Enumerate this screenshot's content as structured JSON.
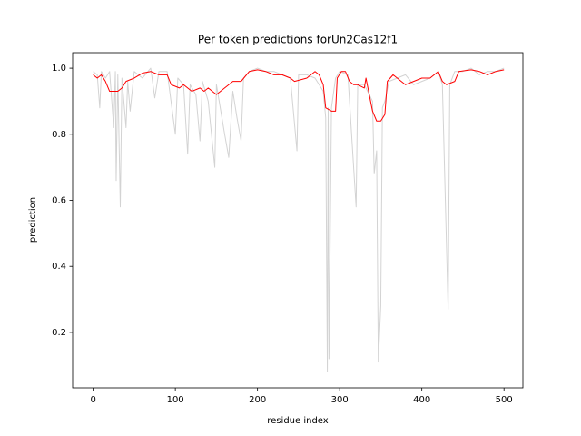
{
  "chart_data": {
    "type": "line",
    "title": "Per token predictions forUn2Cas12f1",
    "x_label": "residue index",
    "y_label": "prediction",
    "xlim": [
      -25,
      523
    ],
    "ylim": [
      0.032,
      1.047
    ],
    "xticks": [
      0,
      100,
      200,
      300,
      400,
      500
    ],
    "yticks": [
      0.2,
      0.4,
      0.6,
      0.8,
      {
        "value": 1,
        "label": "1.0"
      }
    ],
    "grid": false,
    "series": [
      {
        "color": "#d3d3d3",
        "x": [
          0,
          5,
          8,
          10,
          15,
          20,
          25,
          27,
          28,
          30,
          33,
          35,
          40,
          42,
          45,
          50,
          60,
          70,
          75,
          80,
          90,
          100,
          103,
          110,
          115,
          118,
          125,
          130,
          133,
          140,
          148,
          150,
          160,
          165,
          170,
          175,
          180,
          183,
          190,
          200,
          210,
          220,
          230,
          240,
          248,
          250,
          260,
          270,
          280,
          283,
          285,
          286,
          287,
          290,
          295,
          300,
          310,
          320,
          322,
          330,
          340,
          342,
          345,
          347,
          350,
          352,
          355,
          360,
          370,
          380,
          390,
          400,
          410,
          420,
          425,
          432,
          434,
          440,
          450,
          460,
          470,
          480,
          490,
          500
        ],
        "values": [
          0.99,
          0.98,
          0.88,
          0.99,
          0.97,
          0.99,
          0.82,
          0.99,
          0.66,
          0.98,
          0.58,
          0.97,
          0.82,
          0.96,
          0.87,
          0.99,
          0.97,
          1.0,
          0.91,
          0.99,
          0.99,
          0.8,
          0.97,
          0.95,
          0.74,
          0.95,
          0.92,
          0.78,
          0.96,
          0.9,
          0.7,
          0.95,
          0.8,
          0.73,
          0.93,
          0.85,
          0.78,
          0.97,
          0.99,
          1.0,
          0.99,
          0.99,
          0.98,
          0.97,
          0.75,
          0.98,
          0.98,
          0.97,
          0.93,
          0.85,
          0.08,
          0.88,
          0.12,
          0.88,
          0.97,
          0.99,
          0.98,
          0.58,
          0.95,
          0.95,
          0.9,
          0.68,
          0.75,
          0.11,
          0.28,
          0.88,
          0.9,
          0.96,
          0.97,
          0.98,
          0.95,
          0.96,
          0.97,
          0.99,
          0.95,
          0.27,
          0.95,
          0.99,
          0.99,
          1.0,
          0.98,
          0.99,
          0.99,
          1.0
        ]
      },
      {
        "color": "#ff0000",
        "x": [
          0,
          5,
          10,
          15,
          20,
          30,
          35,
          40,
          50,
          60,
          70,
          80,
          90,
          95,
          105,
          110,
          120,
          130,
          135,
          140,
          150,
          160,
          170,
          180,
          190,
          200,
          210,
          220,
          230,
          240,
          245,
          260,
          270,
          275,
          280,
          283,
          290,
          295,
          297,
          302,
          307,
          312,
          317,
          322,
          330,
          332,
          340,
          345,
          350,
          355,
          358,
          365,
          370,
          380,
          390,
          400,
          410,
          420,
          425,
          430,
          440,
          445,
          460,
          470,
          480,
          490,
          500
        ],
        "values": [
          0.98,
          0.97,
          0.98,
          0.96,
          0.93,
          0.93,
          0.94,
          0.96,
          0.97,
          0.985,
          0.99,
          0.98,
          0.98,
          0.95,
          0.94,
          0.95,
          0.93,
          0.94,
          0.93,
          0.94,
          0.92,
          0.94,
          0.96,
          0.96,
          0.99,
          0.995,
          0.99,
          0.98,
          0.98,
          0.97,
          0.96,
          0.97,
          0.99,
          0.98,
          0.95,
          0.88,
          0.87,
          0.87,
          0.97,
          0.99,
          0.99,
          0.96,
          0.95,
          0.95,
          0.94,
          0.97,
          0.87,
          0.84,
          0.84,
          0.86,
          0.96,
          0.98,
          0.97,
          0.95,
          0.96,
          0.97,
          0.97,
          0.99,
          0.96,
          0.95,
          0.96,
          0.99,
          0.995,
          0.99,
          0.98,
          0.99,
          0.995
        ]
      }
    ]
  }
}
